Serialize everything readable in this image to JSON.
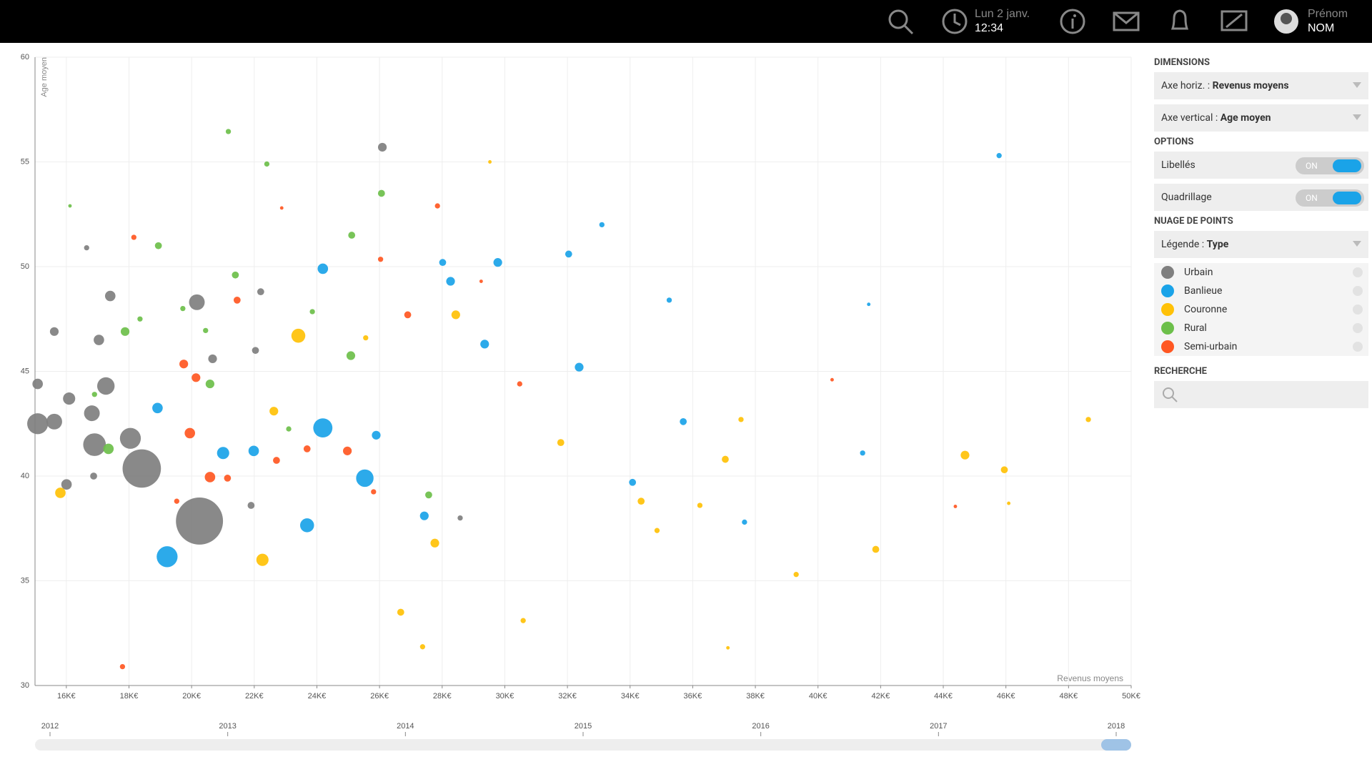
{
  "header": {
    "date": "Lun 2 janv.",
    "time": "12:34",
    "first_name": "Prénom",
    "last_name": "NOM"
  },
  "panel": {
    "dimensions_title": "DIMENSIONS",
    "x_axis_label": "Axe horiz. :",
    "x_axis_value": "Revenus moyens",
    "y_axis_label": "Axe vertical :",
    "y_axis_value": "Age moyen",
    "options_title": "OPTIONS",
    "option_labels": "Libellés",
    "option_labels_state": "ON",
    "option_grid": "Quadrillage",
    "option_grid_state": "ON",
    "scatter_title": "NUAGE DE POINTS",
    "legend_label": "Légende :",
    "legend_value": "Type",
    "search_title": "RECHERCHE"
  },
  "timeline": {
    "ticks": [
      2012,
      2013,
      2014,
      2015,
      2016,
      2017,
      2018
    ]
  },
  "chart_data": {
    "type": "scatter",
    "x_label": "Revenus moyens",
    "y_label": "Age moyen",
    "grid": true,
    "xlim": [
      15000,
      50000
    ],
    "ylim": [
      30,
      60
    ],
    "xticks": [
      {
        "value": 16000,
        "label": "16K€"
      },
      {
        "value": 18000,
        "label": "18K€"
      },
      {
        "value": 20000,
        "label": "20K€"
      },
      {
        "value": 22000,
        "label": "22K€"
      },
      {
        "value": 24000,
        "label": "24K€"
      },
      {
        "value": 26000,
        "label": "26K€"
      },
      {
        "value": 28000,
        "label": "28K€"
      },
      {
        "value": 30000,
        "label": "30K€"
      },
      {
        "value": 32000,
        "label": "32K€"
      },
      {
        "value": 34000,
        "label": "34K€"
      },
      {
        "value": 36000,
        "label": "36K€"
      },
      {
        "value": 38000,
        "label": "38K€"
      },
      {
        "value": 40000,
        "label": "40K€"
      },
      {
        "value": 42000,
        "label": "42K€"
      },
      {
        "value": 44000,
        "label": "44K€"
      },
      {
        "value": 46000,
        "label": "46K€"
      },
      {
        "value": 48000,
        "label": "48K€"
      },
      {
        "value": 50000,
        "label": "50K€"
      }
    ],
    "yticks": [
      30,
      35,
      40,
      45,
      50,
      55,
      60
    ],
    "series": [
      {
        "name": "Urbain",
        "color": "#7f7f7f",
        "x": [
          18408,
          20251,
          15084,
          15615,
          18045,
          16900,
          20168,
          17263,
          26090,
          16816,
          16089,
          15084,
          17402,
          15615,
          16006,
          16872,
          20670,
          22039,
          22206,
          28575,
          16648,
          17040,
          21899
        ],
        "y": [
          40.36,
          37.85,
          42.5,
          42.6,
          41.8,
          41.5,
          48.3,
          44.3,
          55.7,
          43.0,
          43.7,
          44.4,
          48.6,
          46.9,
          39.6,
          40.0,
          45.6,
          46.0,
          48.8,
          38.0,
          50.9,
          46.5,
          38.6
        ],
        "sizes": [
          22,
          27,
          12,
          9,
          12,
          13,
          9,
          10,
          5,
          9,
          7,
          6,
          6,
          5,
          6,
          4,
          5,
          4,
          4,
          3,
          3,
          6,
          4
        ]
      },
      {
        "name": "Banlieue",
        "color": "#1aa3e8",
        "x": [
          19218,
          24190,
          25531,
          23687,
          18911,
          21006,
          24190,
          29776,
          28016,
          28268,
          29357,
          32039,
          32374,
          34078,
          35698,
          37654,
          41425,
          45783,
          41620,
          25894,
          27430,
          21983,
          33100,
          35250
        ],
        "y": [
          36.15,
          42.3,
          39.9,
          37.65,
          43.25,
          41.1,
          49.9,
          50.2,
          50.2,
          49.3,
          46.3,
          50.6,
          45.2,
          39.7,
          42.6,
          37.8,
          41.1,
          55.3,
          48.2,
          41.95,
          38.1,
          41.2,
          52.0,
          48.4
        ],
        "sizes": [
          12,
          11,
          10,
          8,
          6,
          7,
          6,
          5,
          4,
          5,
          5,
          4,
          5,
          4,
          4,
          3,
          3,
          3,
          2,
          5,
          5,
          6,
          3,
          3
        ]
      },
      {
        "name": "Couronne",
        "color": "#ffc107",
        "x": [
          23408,
          22262,
          15810,
          27766,
          28435,
          34353,
          44694,
          45950,
          41844,
          39303,
          37542,
          37040,
          34861,
          27375,
          30587,
          26677,
          22626,
          31787,
          36229,
          48632,
          46090,
          37124,
          29524,
          25559
        ],
        "y": [
          46.7,
          36.0,
          39.2,
          36.8,
          47.7,
          38.8,
          41.0,
          40.3,
          36.5,
          35.3,
          42.7,
          40.8,
          37.4,
          31.85,
          33.1,
          33.5,
          43.1,
          41.6,
          38.6,
          42.7,
          38.7,
          31.8,
          55.0,
          46.6
        ],
        "sizes": [
          8,
          7,
          6,
          5,
          5,
          4,
          5,
          4,
          4,
          3,
          3,
          4,
          3,
          3,
          3,
          4,
          5,
          4,
          3,
          3,
          2,
          2,
          2,
          3
        ]
      },
      {
        "name": "Rural",
        "color": "#6cbf4a",
        "x": [
          21173,
          22402,
          26062,
          25112,
          18939,
          17345,
          17876,
          21397,
          20587,
          25084,
          27570,
          16900,
          18352,
          19720,
          20447,
          23101,
          16117,
          23855
        ],
        "y": [
          56.45,
          54.9,
          53.5,
          51.5,
          51.0,
          41.3,
          46.9,
          49.6,
          44.4,
          45.75,
          39.1,
          43.9,
          47.5,
          48.0,
          46.95,
          42.25,
          52.9,
          47.85
        ],
        "sizes": [
          3,
          3,
          4,
          4,
          4,
          6,
          5,
          4,
          5,
          5,
          4,
          3,
          3,
          3,
          3,
          3,
          2,
          3
        ]
      },
      {
        "name": "Semi-urbain",
        "color": "#ff5722",
        "x": [
          19944,
          20587,
          20140,
          26900,
          21453,
          19749,
          24973,
          26034,
          27850,
          18156,
          30476,
          17793,
          22877,
          29245,
          23687,
          21146,
          25810,
          19525,
          40450,
          44386,
          22710
        ],
        "y": [
          42.05,
          39.95,
          44.7,
          47.7,
          48.4,
          45.35,
          41.2,
          50.35,
          52.9,
          51.4,
          44.4,
          30.9,
          52.8,
          49.3,
          41.3,
          39.9,
          39.25,
          38.8,
          44.6,
          38.55,
          40.75
        ],
        "sizes": [
          6,
          6,
          5,
          4,
          4,
          5,
          5,
          3,
          3,
          3,
          3,
          3,
          2,
          2,
          4,
          4,
          3,
          3,
          2,
          2,
          4
        ]
      }
    ]
  }
}
